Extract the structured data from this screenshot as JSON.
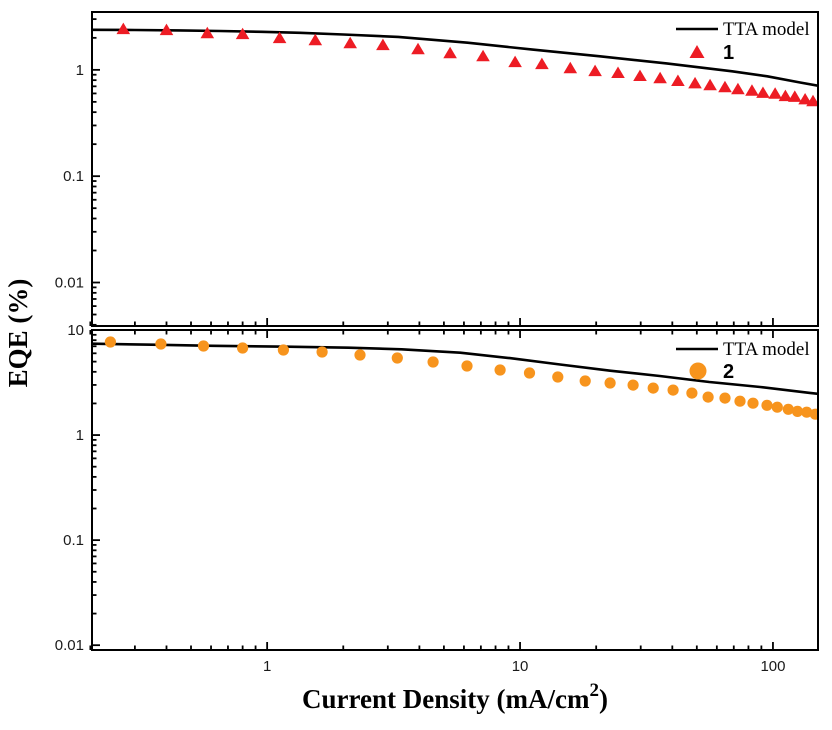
{
  "figure": {
    "ylabel": "EQE (%)",
    "xlabel": {
      "pre": "Current Density (mA/cm",
      "sup": "2",
      "post": ")"
    }
  },
  "colors": {
    "frame": "#000000",
    "model_line": "#000000",
    "series1": "#ED1C24",
    "series2": "#F7941D",
    "background": "#FFFFFF"
  },
  "chart_data": {
    "type": "scatter",
    "xscale": "log",
    "yscale": "log",
    "xlabel": "Current Density (mA/cm^2)",
    "ylabel": "EQE (%)",
    "xlim": [
      0.203,
      150.7
    ],
    "x_ticks": {
      "major": [
        1,
        10,
        100
      ],
      "labels": [
        "1",
        "10",
        "100"
      ]
    },
    "grid": false,
    "legend_position": "top-right-inside",
    "panels": [
      {
        "name": "device-1",
        "ylim": [
          0.0039,
          3.5
        ],
        "y_ticks": {
          "major": [
            1,
            0.1,
            0.01
          ],
          "labels": [
            "1",
            "0.1",
            "0.01"
          ]
        },
        "legend": [
          {
            "marker": "line",
            "label": "TTA model"
          },
          {
            "marker": "triangle",
            "label": "1"
          }
        ],
        "series": [
          {
            "name": "TTA model",
            "type": "line",
            "color": "#000000",
            "x": [
              0.203,
              0.3,
              0.45,
              0.65,
              0.95,
              1.35,
              2.0,
              3.3,
              6.2,
              11.2,
              20.7,
              38,
              69,
              95,
              128,
              150.7
            ],
            "y": [
              2.38,
              2.37,
              2.35,
              2.32,
              2.28,
              2.23,
              2.15,
              2.04,
              1.8,
              1.55,
              1.34,
              1.15,
              0.97,
              0.87,
              0.76,
              0.71
            ]
          },
          {
            "name": "1",
            "type": "scatter",
            "marker": "triangle",
            "color": "#ED1C24",
            "x": [
              0.27,
              0.4,
              0.58,
              0.8,
              1.12,
              1.55,
              2.13,
              2.87,
              3.95,
              5.29,
              7.14,
              9.56,
              12.2,
              15.8,
              19.8,
              24.4,
              29.8,
              35.8,
              42.1,
              49.2,
              56.4,
              64.6,
              72.7,
              82.6,
              91.3,
              102,
              112,
              122,
              134,
              144
            ],
            "y": [
              2.43,
              2.38,
              2.22,
              2.18,
              2.0,
              1.91,
              1.79,
              1.72,
              1.57,
              1.44,
              1.35,
              1.19,
              1.14,
              1.04,
              0.98,
              0.94,
              0.88,
              0.84,
              0.79,
              0.75,
              0.72,
              0.69,
              0.66,
              0.64,
              0.61,
              0.6,
              0.57,
              0.56,
              0.53,
              0.51
            ]
          }
        ]
      },
      {
        "name": "device-2",
        "ylim": [
          0.009,
          10.0
        ],
        "y_ticks": {
          "major": [
            10,
            1,
            0.1,
            0.01
          ],
          "labels": [
            "10",
            "1",
            "0.1",
            "0.01"
          ]
        },
        "legend": [
          {
            "marker": "line",
            "label": "TTA model"
          },
          {
            "marker": "circle",
            "label": "2"
          }
        ],
        "series": [
          {
            "name": "TTA model",
            "type": "line",
            "color": "#000000",
            "x": [
              0.203,
              0.35,
              0.61,
              1.2,
              2.1,
              3.4,
              5.8,
              9.1,
              14.4,
              22.7,
              35.7,
              56,
              89,
              140,
              150.7
            ],
            "y": [
              7.4,
              7.25,
              7.08,
              6.93,
              6.78,
              6.55,
              6.08,
              5.4,
              4.7,
              4.1,
              3.65,
              3.2,
              2.87,
              2.52,
              2.47
            ]
          },
          {
            "name": "2",
            "type": "scatter",
            "marker": "circle",
            "color": "#F7941D",
            "x": [
              0.24,
              0.38,
              0.56,
              0.8,
              1.16,
              1.65,
              2.33,
              3.27,
              4.53,
              6.17,
              8.34,
              10.9,
              14.1,
              18.1,
              22.7,
              28.0,
              33.6,
              40.3,
              47.8,
              55.4,
              64.6,
              74.1,
              83.4,
              94.7,
              104,
              115,
              125,
              136,
              147,
              156
            ],
            "y": [
              7.69,
              7.36,
              7.04,
              6.74,
              6.45,
              6.17,
              5.78,
              5.41,
              4.96,
              4.54,
              4.16,
              3.9,
              3.57,
              3.27,
              3.13,
              2.99,
              2.8,
              2.68,
              2.51,
              2.3,
              2.25,
              2.1,
              2.01,
              1.92,
              1.84,
              1.76,
              1.68,
              1.65,
              1.58,
              1.51
            ]
          }
        ]
      }
    ]
  }
}
